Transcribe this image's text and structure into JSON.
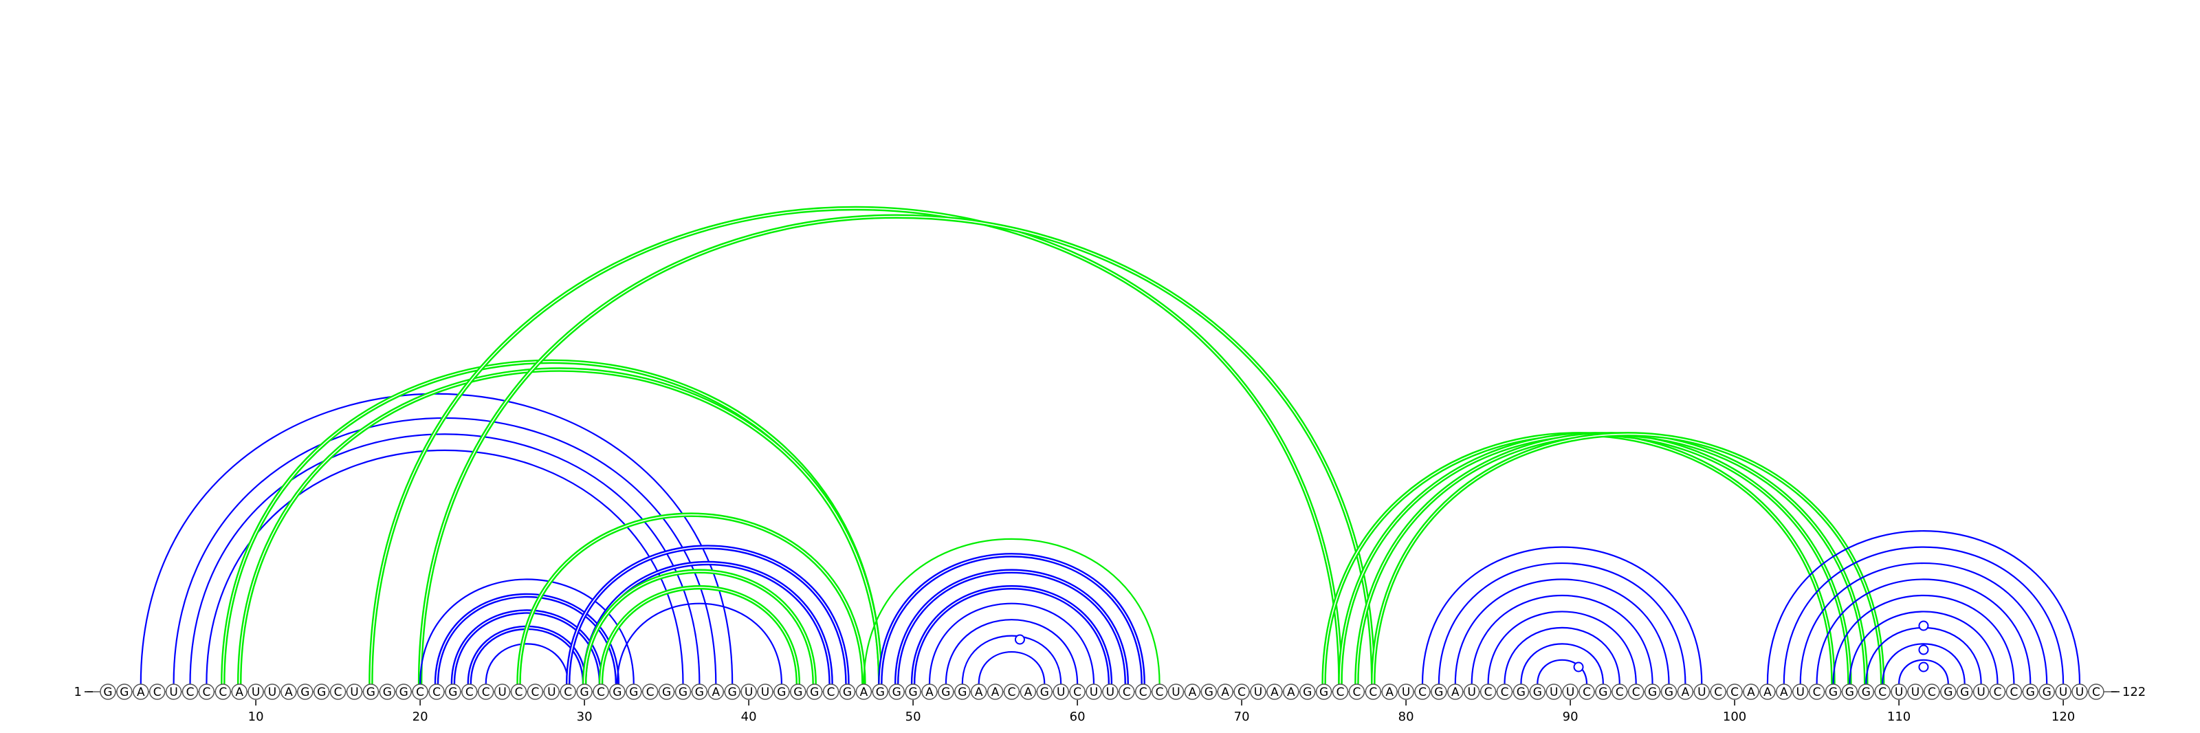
{
  "title": "",
  "sequence": "GGACUCCCAUUAGGCUGGGCCGCCUCCUCGCGGCGGGAGUUGGGCGAGGGAGGAACAGUCUUCCCUAGACUAAGGCCCAUCGAUCCGGUUCGCCGGAUCCAAAUCGGGCUUCGGUCCGGUUC",
  "start_label": "1",
  "end_label": "122",
  "tick_positions": [
    10,
    20,
    30,
    40,
    50,
    60,
    70,
    80,
    90,
    100,
    110,
    120
  ],
  "tick_labels": [
    "10",
    "20",
    "30",
    "40",
    "50",
    "60",
    "70",
    "80",
    "90",
    "100",
    "110",
    "120"
  ],
  "colors": {
    "blue_arcs": "#0000ff",
    "green_arcs": "#00ee00",
    "nucleotide_fill": "#ffffff",
    "nucleotide_stroke": "#555555",
    "text": "#000000"
  },
  "arcs": [
    {
      "i": 3,
      "j": 39,
      "color": "blue",
      "style": "single"
    },
    {
      "i": 5,
      "j": 38,
      "color": "blue",
      "style": "single"
    },
    {
      "i": 6,
      "j": 37,
      "color": "blue",
      "style": "single"
    },
    {
      "i": 7,
      "j": 36,
      "color": "blue",
      "style": "single"
    },
    {
      "i": 8,
      "j": 48,
      "color": "green",
      "style": "double"
    },
    {
      "i": 9,
      "j": 48,
      "color": "green",
      "style": "double"
    },
    {
      "i": 17,
      "j": 76,
      "color": "green",
      "style": "double"
    },
    {
      "i": 20,
      "j": 78,
      "color": "green",
      "style": "double"
    },
    {
      "i": 20,
      "j": 33,
      "color": "blue",
      "style": "single"
    },
    {
      "i": 21,
      "j": 32,
      "color": "blue",
      "style": "double"
    },
    {
      "i": 22,
      "j": 31,
      "color": "blue",
      "style": "double"
    },
    {
      "i": 23,
      "j": 30,
      "color": "blue",
      "style": "double"
    },
    {
      "i": 24,
      "j": 29,
      "color": "blue",
      "style": "single"
    },
    {
      "i": 26,
      "j": 47,
      "color": "green",
      "style": "double"
    },
    {
      "i": 29,
      "j": 46,
      "color": "blue",
      "style": "double"
    },
    {
      "i": 30,
      "j": 45,
      "color": "blue",
      "style": "double"
    },
    {
      "i": 30,
      "j": 44,
      "color": "green",
      "style": "double"
    },
    {
      "i": 31,
      "j": 43,
      "color": "green",
      "style": "double"
    },
    {
      "i": 32,
      "j": 42,
      "color": "blue",
      "style": "single"
    },
    {
      "i": 47,
      "j": 65,
      "color": "green",
      "style": "single"
    },
    {
      "i": 48,
      "j": 64,
      "color": "blue",
      "style": "double"
    },
    {
      "i": 49,
      "j": 63,
      "color": "blue",
      "style": "double"
    },
    {
      "i": 50,
      "j": 62,
      "color": "blue",
      "style": "double"
    },
    {
      "i": 51,
      "j": 61,
      "color": "blue",
      "style": "single"
    },
    {
      "i": 52,
      "j": 60,
      "color": "blue",
      "style": "single"
    },
    {
      "i": 53,
      "j": 59,
      "color": "blue",
      "style": "single"
    },
    {
      "i": 54,
      "j": 58,
      "color": "blue",
      "style": "single"
    },
    {
      "i": 75,
      "j": 106,
      "color": "green",
      "style": "double"
    },
    {
      "i": 76,
      "j": 107,
      "color": "green",
      "style": "double"
    },
    {
      "i": 77,
      "j": 108,
      "color": "green",
      "style": "double"
    },
    {
      "i": 78,
      "j": 109,
      "color": "green",
      "style": "double"
    },
    {
      "i": 81,
      "j": 98,
      "color": "blue",
      "style": "single"
    },
    {
      "i": 82,
      "j": 97,
      "color": "blue",
      "style": "single"
    },
    {
      "i": 83,
      "j": 96,
      "color": "blue",
      "style": "single"
    },
    {
      "i": 84,
      "j": 95,
      "color": "blue",
      "style": "single"
    },
    {
      "i": 85,
      "j": 94,
      "color": "blue",
      "style": "single"
    },
    {
      "i": 86,
      "j": 93,
      "color": "blue",
      "style": "single"
    },
    {
      "i": 87,
      "j": 92,
      "color": "blue",
      "style": "single"
    },
    {
      "i": 88,
      "j": 91,
      "color": "blue",
      "style": "single"
    },
    {
      "i": 102,
      "j": 121,
      "color": "blue",
      "style": "single"
    },
    {
      "i": 103,
      "j": 120,
      "color": "blue",
      "style": "single"
    },
    {
      "i": 104,
      "j": 119,
      "color": "blue",
      "style": "single"
    },
    {
      "i": 105,
      "j": 118,
      "color": "blue",
      "style": "single"
    },
    {
      "i": 106,
      "j": 117,
      "color": "blue",
      "style": "single"
    },
    {
      "i": 107,
      "j": 116,
      "color": "blue",
      "style": "single"
    },
    {
      "i": 108,
      "j": 115,
      "color": "blue",
      "style": "single"
    },
    {
      "i": 109,
      "j": 114,
      "color": "blue",
      "style": "single"
    },
    {
      "i": 110,
      "j": 113,
      "color": "blue",
      "style": "single"
    }
  ],
  "markers": [
    {
      "pos": 56.5,
      "level": 0.55,
      "color": "blue"
    },
    {
      "pos": 90.5,
      "level": 0.15,
      "color": "blue"
    },
    {
      "pos": 111.5,
      "level": 0.75,
      "color": "blue"
    },
    {
      "pos": 111.5,
      "level": 0.4,
      "color": "blue"
    },
    {
      "pos": 111.5,
      "level": 0.15,
      "color": "blue"
    }
  ]
}
